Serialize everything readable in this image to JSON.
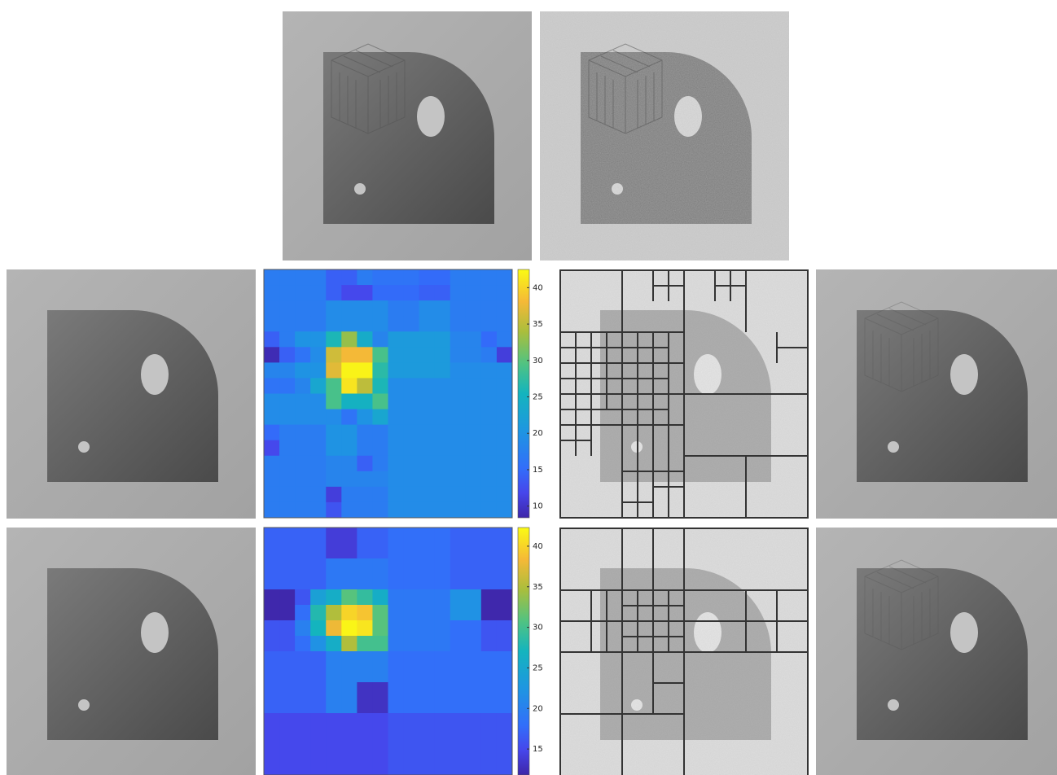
{
  "chart_data": [
    {
      "type": "heatmap",
      "clim": [
        8.4,
        42.5
      ],
      "cticks": [
        10,
        15,
        20,
        25,
        30,
        35,
        40
      ],
      "values": [
        [
          17,
          17,
          17,
          17,
          14,
          14,
          17,
          16,
          16,
          16,
          15,
          15,
          17,
          17,
          17,
          17
        ],
        [
          17,
          17,
          17,
          17,
          14,
          12,
          12,
          15,
          15,
          15,
          14,
          14,
          17,
          17,
          17,
          17
        ],
        [
          17,
          17,
          17,
          17,
          19,
          19,
          19,
          19,
          17,
          17,
          19,
          19,
          17,
          17,
          17,
          17
        ],
        [
          17,
          17,
          17,
          17,
          19,
          19,
          19,
          19,
          17,
          17,
          19,
          19,
          17,
          17,
          17,
          17
        ],
        [
          14,
          17,
          20,
          20,
          26,
          33,
          24,
          18,
          21,
          21,
          21,
          21,
          18,
          18,
          15,
          17
        ],
        [
          9,
          14,
          16,
          19,
          36,
          38,
          38,
          29,
          21,
          21,
          21,
          21,
          18,
          18,
          17,
          11
        ],
        [
          18,
          18,
          20,
          20,
          37,
          42,
          42,
          27,
          21,
          21,
          21,
          21,
          19,
          19,
          19,
          19
        ],
        [
          16,
          16,
          18,
          23,
          29,
          41,
          35,
          26,
          19,
          19,
          19,
          19,
          19,
          19,
          19,
          19
        ],
        [
          19,
          19,
          19,
          19,
          29,
          25,
          25,
          29,
          19,
          19,
          19,
          19,
          19,
          19,
          19,
          19
        ],
        [
          19,
          19,
          19,
          19,
          19,
          16,
          20,
          23,
          19,
          19,
          19,
          19,
          19,
          19,
          19,
          19
        ],
        [
          15,
          17,
          17,
          17,
          20,
          20,
          17,
          17,
          19,
          19,
          19,
          19,
          19,
          19,
          19,
          19
        ],
        [
          12,
          17,
          17,
          17,
          20,
          20,
          17,
          17,
          19,
          19,
          19,
          19,
          19,
          19,
          19,
          19
        ],
        [
          17,
          17,
          17,
          17,
          18,
          18,
          14,
          17,
          19,
          19,
          19,
          19,
          19,
          19,
          19,
          19
        ],
        [
          17,
          17,
          17,
          17,
          18,
          18,
          18,
          18,
          19,
          19,
          19,
          19,
          19,
          19,
          19,
          19
        ],
        [
          17,
          17,
          17,
          17,
          11,
          17,
          17,
          17,
          19,
          19,
          19,
          19,
          19,
          19,
          19,
          19
        ],
        [
          17,
          17,
          17,
          17,
          13,
          17,
          17,
          17,
          19,
          19,
          19,
          19,
          19,
          19,
          19,
          19
        ]
      ]
    },
    {
      "type": "heatmap",
      "clim": [
        11.8,
        42.3
      ],
      "cticks": [
        15,
        20,
        25,
        30,
        35,
        40
      ],
      "values": [
        [
          17,
          17,
          17,
          17,
          14,
          14,
          17,
          17,
          18,
          18,
          18,
          18,
          17,
          17,
          17,
          17
        ],
        [
          17,
          17,
          17,
          17,
          14,
          14,
          17,
          17,
          18,
          18,
          18,
          18,
          17,
          17,
          17,
          17
        ],
        [
          17,
          17,
          17,
          17,
          19,
          19,
          19,
          19,
          18,
          18,
          18,
          18,
          17,
          17,
          17,
          17
        ],
        [
          17,
          17,
          17,
          17,
          19,
          19,
          19,
          19,
          18,
          18,
          18,
          18,
          17,
          17,
          17,
          17
        ],
        [
          12,
          12,
          16,
          24,
          26,
          31,
          29,
          26,
          19,
          19,
          19,
          19,
          22,
          22,
          12,
          12
        ],
        [
          12,
          12,
          18,
          28,
          35,
          40,
          39,
          31,
          19,
          19,
          19,
          19,
          22,
          22,
          12,
          12
        ],
        [
          16,
          16,
          20,
          27,
          38,
          42,
          41,
          31,
          19,
          19,
          19,
          19,
          18,
          18,
          16,
          16
        ],
        [
          16,
          16,
          18,
          22,
          26,
          35,
          30,
          30,
          19,
          19,
          19,
          19,
          18,
          18,
          16,
          16
        ],
        [
          17,
          17,
          17,
          17,
          20,
          20,
          20,
          20,
          18,
          18,
          18,
          18,
          18,
          18,
          18,
          18
        ],
        [
          17,
          17,
          17,
          17,
          20,
          20,
          20,
          20,
          18,
          18,
          18,
          18,
          18,
          18,
          18,
          18
        ],
        [
          17,
          17,
          17,
          17,
          20,
          20,
          13,
          13,
          18,
          18,
          18,
          18,
          18,
          18,
          18,
          18
        ],
        [
          17,
          17,
          17,
          17,
          20,
          20,
          13,
          13,
          18,
          18,
          18,
          18,
          18,
          18,
          18,
          18
        ],
        [
          15,
          15,
          15,
          15,
          15,
          15,
          15,
          15,
          16,
          16,
          16,
          16,
          16,
          16,
          16,
          16
        ],
        [
          15,
          15,
          15,
          15,
          15,
          15,
          15,
          15,
          16,
          16,
          16,
          16,
          16,
          16,
          16,
          16
        ],
        [
          15,
          15,
          15,
          15,
          15,
          15,
          15,
          15,
          16,
          16,
          16,
          16,
          16,
          16,
          16,
          16
        ],
        [
          15,
          15,
          15,
          15,
          15,
          15,
          15,
          15,
          16,
          16,
          16,
          16,
          16,
          16,
          16,
          16
        ]
      ]
    }
  ]
}
